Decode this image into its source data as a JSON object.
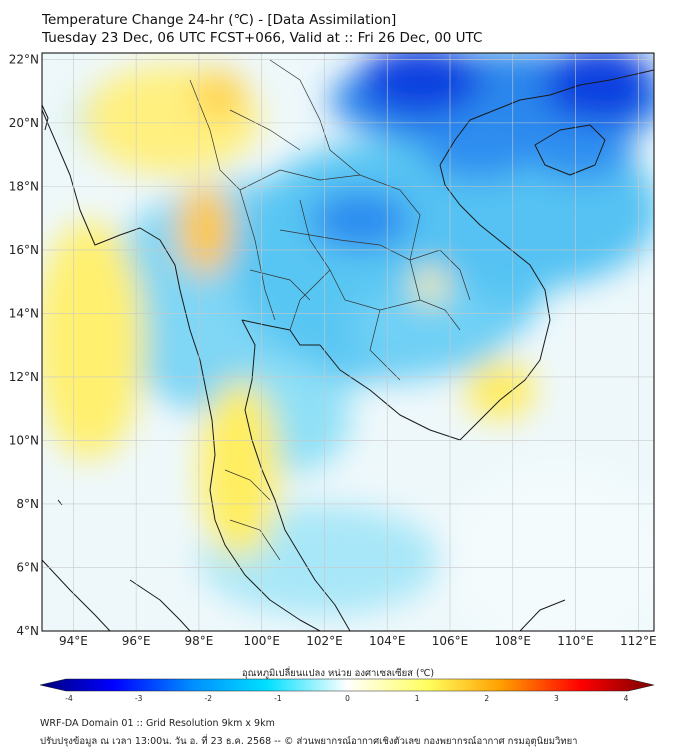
{
  "title": {
    "line1": "Temperature Change 24-hr (℃) - [Data Assimilation]",
    "line2": "Tuesday 23 Dec, 06 UTC FCST+066, Valid at :: Fri 26 Dec, 00 UTC"
  },
  "map": {
    "lat_ticks": [
      "22°N",
      "20°N",
      "18°N",
      "16°N",
      "14°N",
      "12°N",
      "10°N",
      "8°N",
      "6°N",
      "4°N"
    ],
    "lon_ticks": [
      "94°E",
      "96°E",
      "98°E",
      "100°E",
      "102°E",
      "104°E",
      "106°E",
      "108°E",
      "110°E",
      "112°E"
    ],
    "extent": {
      "lon_min": 93,
      "lon_max": 112.5,
      "lat_min": 4,
      "lat_max": 22.2
    }
  },
  "colorbar": {
    "title": "อุณหภูมิเปลี่ยนแปลง หน่วย องศาเซลเซียส (℃)",
    "ticks": [
      "-4",
      "-3",
      "-2",
      "-1",
      "0",
      "1",
      "2",
      "3",
      "4"
    ],
    "colors": [
      "#00007a",
      "#0000ff",
      "#0090ff",
      "#00e0ff",
      "#ffffff",
      "#ffff60",
      "#ffa000",
      "#ff0000",
      "#7a0000"
    ]
  },
  "footer": {
    "line1": "WRF-DA Domain 01 :: Grid Resolution 9km x 9km",
    "line2": "ปรับปรุงข้อมูล ณ เวลา 13:00น. วัน อ. ที่ 23 ธ.ค. 2568 -- © ส่วนพยากรณ์อากาศเชิงตัวเลข กองพยากรณ์อากาศ กรมอุตุนิยมวิทยา"
  }
}
